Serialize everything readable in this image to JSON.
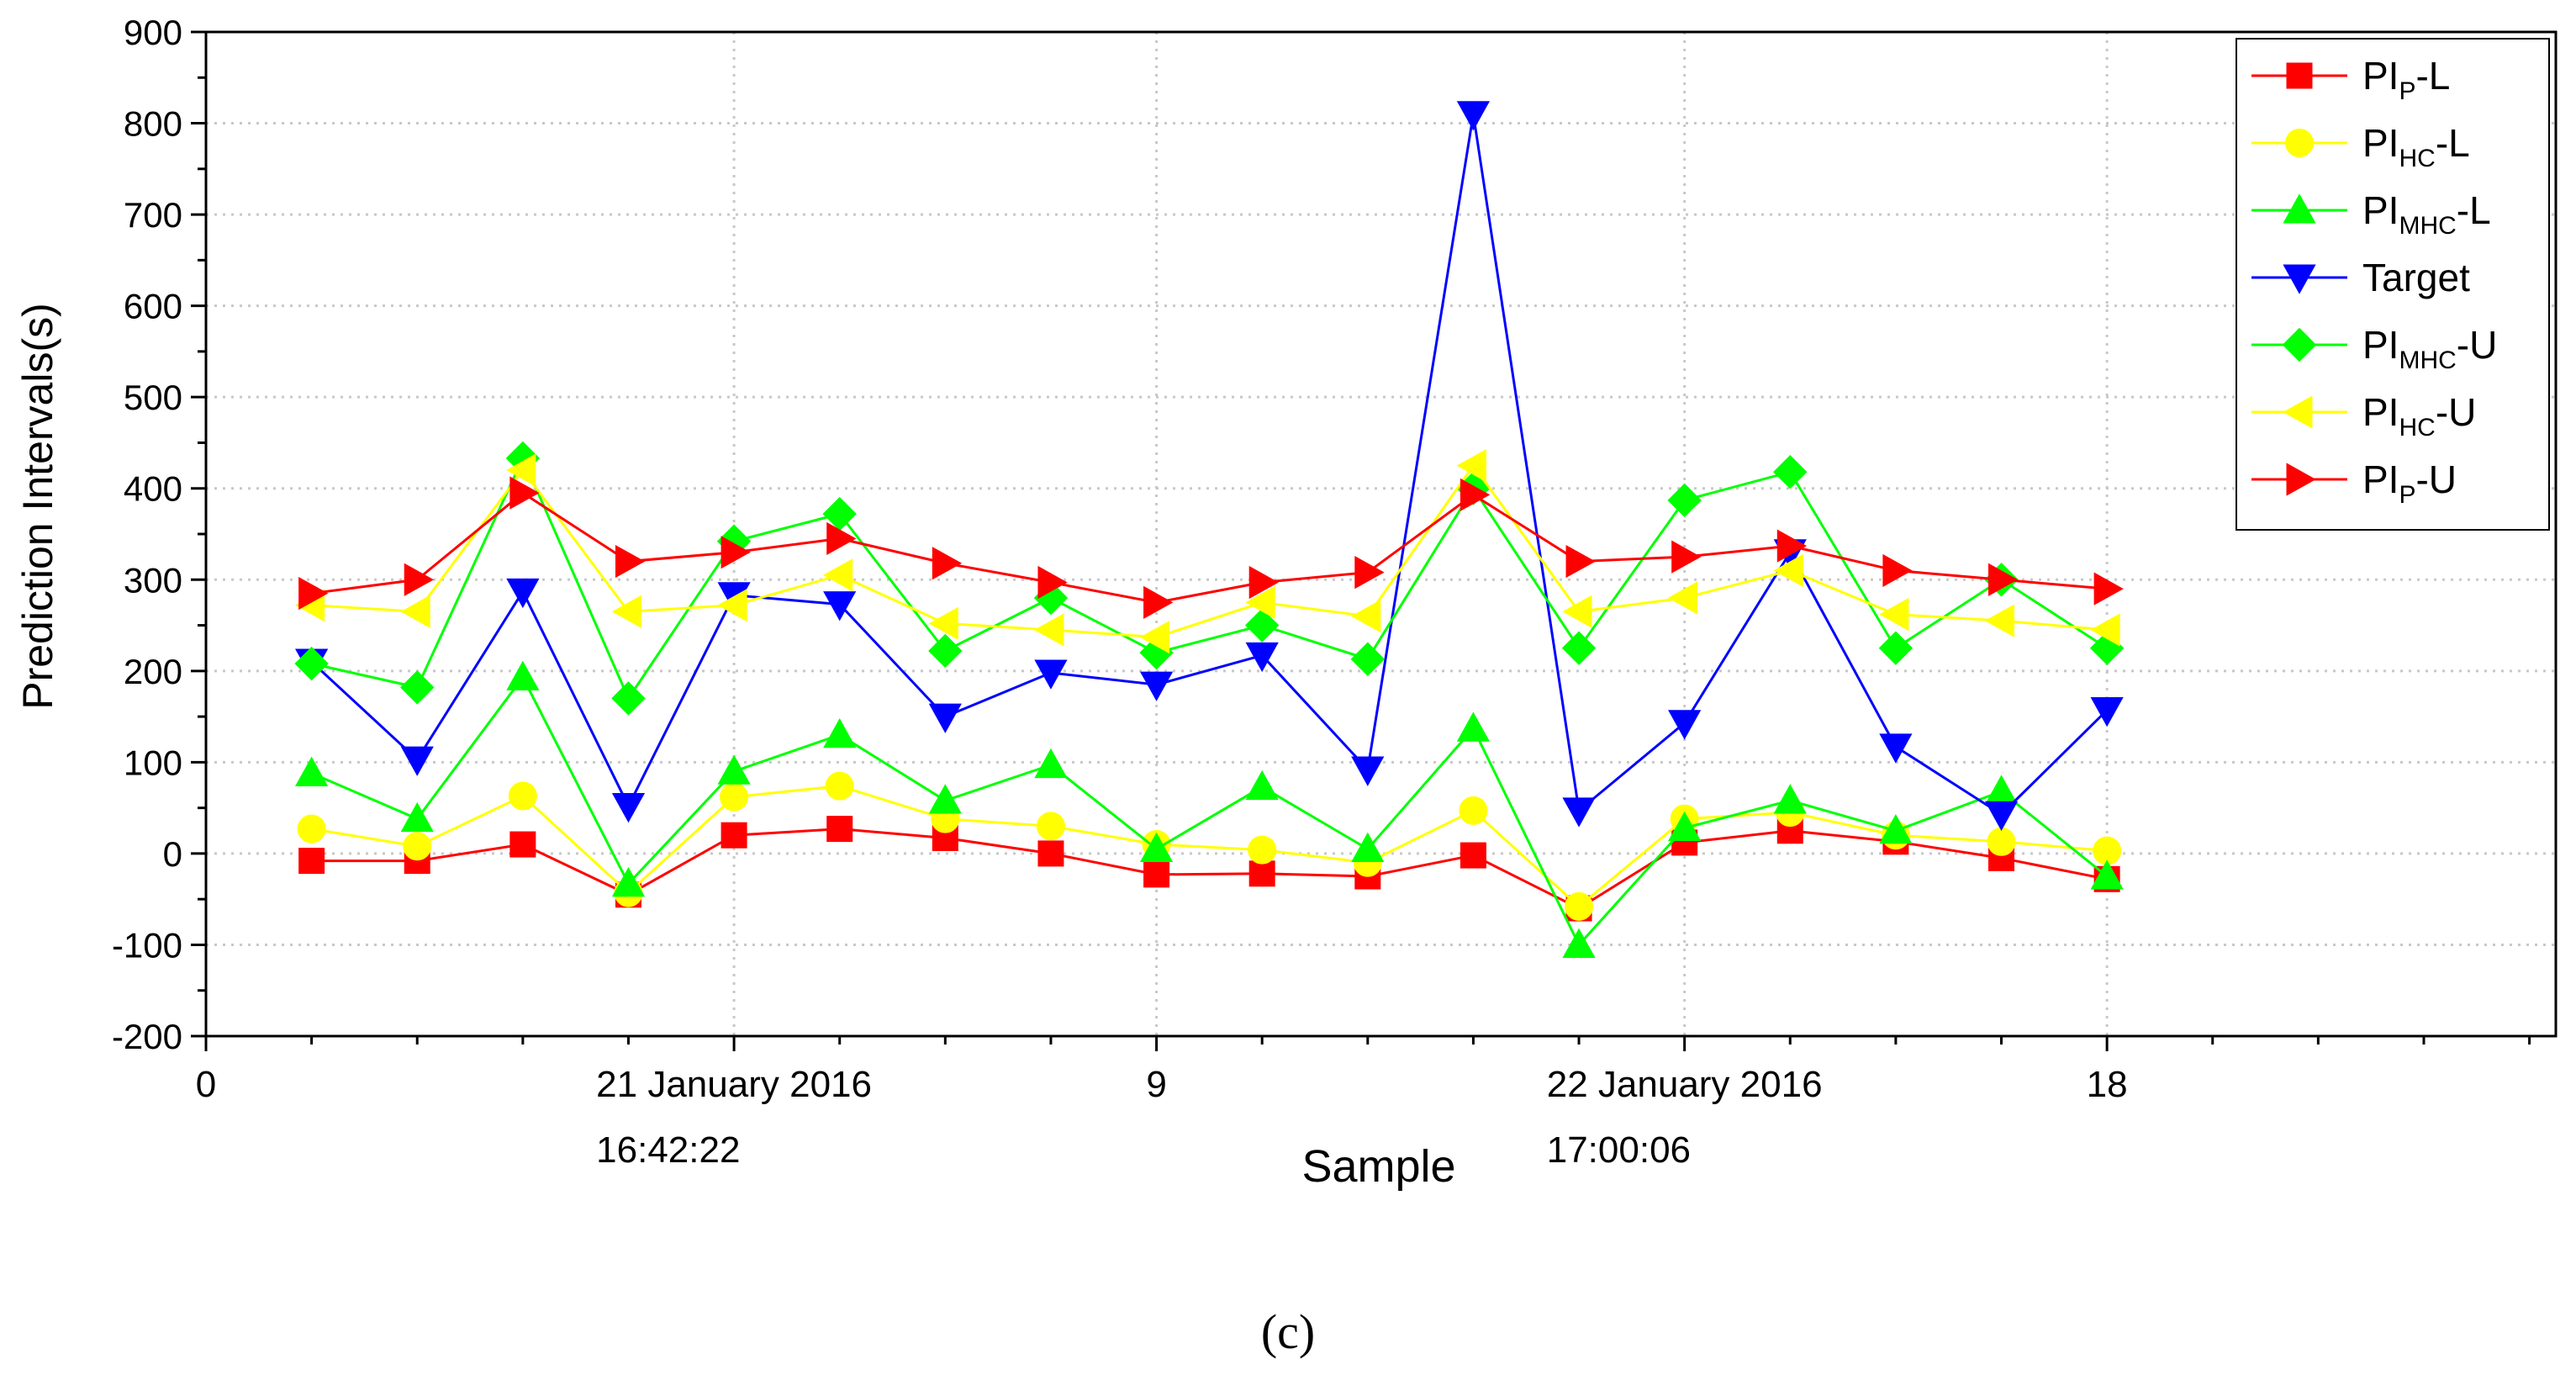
{
  "chart_data": {
    "type": "line",
    "title": "",
    "xlabel": "Sample",
    "ylabel": "Prediction Intervals(s)",
    "xlim": [
      0,
      22.25
    ],
    "ylim": [
      -200,
      900
    ],
    "y_ticks": [
      -200,
      -100,
      0,
      100,
      200,
      300,
      400,
      500,
      600,
      700,
      800,
      900
    ],
    "x_ticks": [
      {
        "value": 0,
        "label": "0"
      },
      {
        "value": 5,
        "label": "21 January 2016",
        "sublabel": "16:42:22"
      },
      {
        "value": 9,
        "label": "9"
      },
      {
        "value": 14,
        "label": "22 January 2016",
        "sublabel": "17:00:06"
      },
      {
        "value": 18,
        "label": "18"
      }
    ],
    "grid": true,
    "legend_position": "top-right",
    "x": [
      1,
      2,
      3,
      4,
      5,
      6,
      7,
      8,
      9,
      10,
      11,
      12,
      13,
      14,
      15,
      16,
      17,
      18
    ],
    "series": [
      {
        "name": "PI",
        "sub": "P",
        "suffix": "-L",
        "color": "#ff0000",
        "marker": "square",
        "values": [
          -8,
          -8,
          10,
          -45,
          20,
          27,
          17,
          0,
          -23,
          -22,
          -25,
          -2,
          -60,
          12,
          25,
          13,
          -5,
          -28
        ]
      },
      {
        "name": "PI",
        "sub": "HC",
        "suffix": "-L",
        "color": "#ffff00",
        "marker": "circle",
        "values": [
          27,
          8,
          63,
          -43,
          62,
          74,
          38,
          30,
          10,
          4,
          -10,
          47,
          -58,
          38,
          45,
          20,
          13,
          3
        ]
      },
      {
        "name": "PI",
        "sub": "MHC",
        "suffix": "-L",
        "color": "#00ff00",
        "marker": "triangle-up",
        "values": [
          88,
          38,
          193,
          -33,
          90,
          130,
          58,
          97,
          5,
          73,
          5,
          137,
          -100,
          28,
          58,
          25,
          68,
          -25
        ]
      },
      {
        "name": "Target",
        "sub": "",
        "suffix": "",
        "color": "#0000ff",
        "marker": "triangle-down",
        "values": [
          210,
          103,
          287,
          52,
          283,
          273,
          150,
          198,
          185,
          217,
          92,
          810,
          47,
          143,
          330,
          117,
          43,
          157
        ]
      },
      {
        "name": "PI",
        "sub": "MHC",
        "suffix": "-U",
        "color": "#00ff00",
        "marker": "diamond",
        "values": [
          208,
          182,
          433,
          170,
          342,
          372,
          222,
          280,
          220,
          250,
          213,
          400,
          225,
          387,
          418,
          225,
          300,
          225
        ]
      },
      {
        "name": "PI",
        "sub": "HC",
        "suffix": "-U",
        "color": "#ffff00",
        "marker": "triangle-left",
        "values": [
          272,
          265,
          420,
          265,
          272,
          305,
          252,
          245,
          237,
          275,
          260,
          425,
          265,
          280,
          310,
          262,
          255,
          245
        ]
      },
      {
        "name": "PI",
        "sub": "P",
        "suffix": "-U",
        "color": "#ff0000",
        "marker": "triangle-right",
        "values": [
          285,
          300,
          395,
          320,
          330,
          345,
          318,
          297,
          275,
          297,
          308,
          393,
          320,
          325,
          337,
          310,
          300,
          290
        ]
      }
    ],
    "caption": "(c)"
  }
}
